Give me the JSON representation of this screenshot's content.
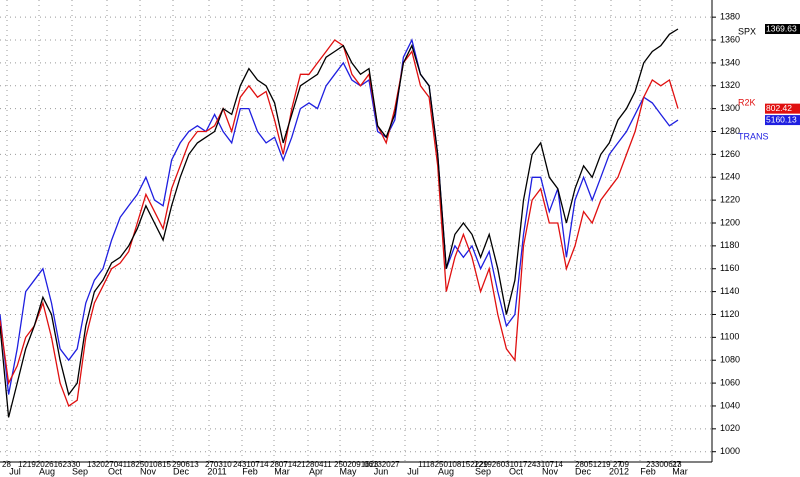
{
  "chart_data": {
    "type": "line",
    "months": [
      "Jul",
      "Aug",
      "Sep",
      "Oct",
      "Nov",
      "Dec",
      "2011",
      "Feb",
      "Mar",
      "Apr",
      "May",
      "Jun",
      "Jul",
      "Aug",
      "Sep",
      "Oct",
      "Nov",
      "Dec",
      "2012",
      "Feb",
      "Mar"
    ],
    "days": [
      "28",
      "12192026162330",
      "1320270411825010815",
      "290613",
      "270310",
      "24310714",
      "28071421280411",
      "2502091623",
      "06132027",
      "1118250108152229",
      "12192603101724310714",
      "28051219 27",
      "09",
      "23300613",
      "27"
    ],
    "ylim": [
      991,
      1395
    ],
    "yticks": [
      1000,
      1020,
      1040,
      1060,
      1080,
      1100,
      1120,
      1140,
      1160,
      1180,
      1200,
      1220,
      1240,
      1260,
      1280,
      1300,
      1320,
      1340,
      1360,
      1380
    ],
    "grid": true,
    "series": [
      {
        "name": "TRANS",
        "color": "#1f1fe0",
        "last_label": "5160.13",
        "values": [
          1120,
          1050,
          1090,
          1140,
          1150,
          1160,
          1130,
          1090,
          1080,
          1090,
          1130,
          1150,
          1160,
          1185,
          1205,
          1215,
          1225,
          1240,
          1220,
          1215,
          1255,
          1270,
          1280,
          1285,
          1280,
          1295,
          1280,
          1270,
          1300,
          1300,
          1280,
          1270,
          1275,
          1255,
          1275,
          1300,
          1305,
          1300,
          1320,
          1330,
          1340,
          1325,
          1320,
          1325,
          1280,
          1275,
          1290,
          1345,
          1360,
          1330,
          1320,
          1260,
          1160,
          1180,
          1170,
          1180,
          1160,
          1175,
          1140,
          1110,
          1120,
          1190,
          1240,
          1240,
          1210,
          1230,
          1170,
          1220,
          1240,
          1220,
          1240,
          1260,
          1270,
          1280,
          1295,
          1310,
          1305,
          1295,
          1285,
          1290
        ]
      },
      {
        "name": "R2K",
        "color": "#e01010",
        "last_label": "802.42",
        "values": [
          1115,
          1060,
          1075,
          1100,
          1110,
          1130,
          1100,
          1060,
          1040,
          1045,
          1100,
          1130,
          1145,
          1160,
          1165,
          1175,
          1200,
          1225,
          1210,
          1195,
          1230,
          1250,
          1270,
          1280,
          1280,
          1285,
          1300,
          1280,
          1310,
          1320,
          1310,
          1315,
          1290,
          1260,
          1300,
          1330,
          1330,
          1340,
          1350,
          1360,
          1355,
          1330,
          1320,
          1330,
          1285,
          1270,
          1300,
          1340,
          1350,
          1320,
          1310,
          1250,
          1140,
          1170,
          1190,
          1170,
          1140,
          1160,
          1120,
          1090,
          1080,
          1180,
          1220,
          1230,
          1200,
          1200,
          1160,
          1180,
          1210,
          1200,
          1220,
          1230,
          1240,
          1260,
          1280,
          1310,
          1325,
          1320,
          1325,
          1300
        ]
      },
      {
        "name": "SPX",
        "color": "#000000",
        "last_label": "1369.63",
        "values": [
          1110,
          1030,
          1060,
          1090,
          1110,
          1135,
          1120,
          1080,
          1050,
          1060,
          1110,
          1140,
          1150,
          1165,
          1170,
          1180,
          1195,
          1215,
          1200,
          1185,
          1215,
          1240,
          1260,
          1270,
          1275,
          1280,
          1300,
          1295,
          1320,
          1335,
          1325,
          1320,
          1305,
          1270,
          1295,
          1320,
          1325,
          1330,
          1345,
          1350,
          1355,
          1340,
          1330,
          1335,
          1285,
          1275,
          1295,
          1340,
          1355,
          1330,
          1320,
          1260,
          1160,
          1190,
          1200,
          1190,
          1170,
          1190,
          1160,
          1120,
          1150,
          1220,
          1260,
          1270,
          1240,
          1230,
          1200,
          1230,
          1250,
          1240,
          1260,
          1270,
          1290,
          1300,
          1315,
          1340,
          1350,
          1355,
          1365,
          1369.63
        ]
      }
    ]
  }
}
